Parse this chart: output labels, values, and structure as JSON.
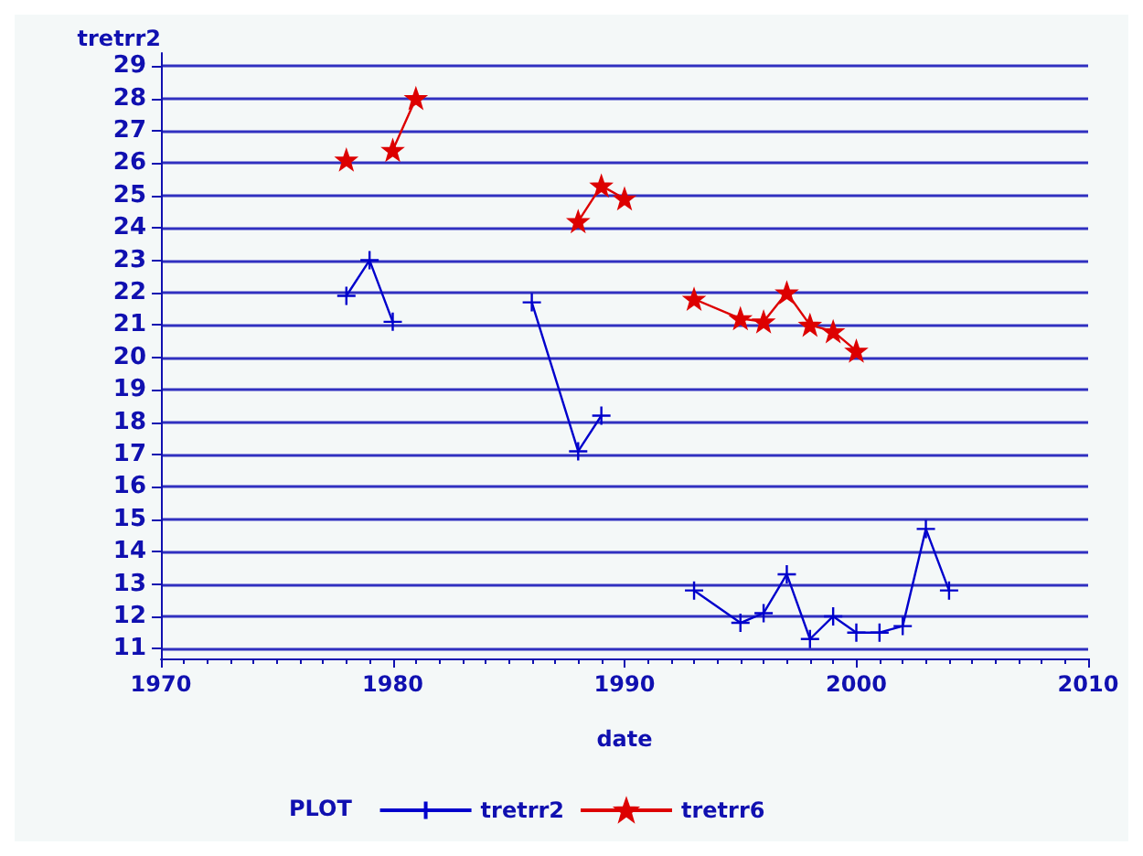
{
  "chart_data": {
    "type": "line",
    "ylabel": "tretrr2",
    "xlabel": "date",
    "legend_title": "PLOT",
    "legend": "bottom",
    "grid": "y",
    "xlim": [
      1970,
      2010
    ],
    "xticks": [
      1970,
      1980,
      1990,
      2000,
      2010
    ],
    "ylim": [
      10.7,
      29.4
    ],
    "yticks": [
      11,
      12,
      13,
      14,
      15,
      16,
      17,
      18,
      19,
      20,
      21,
      22,
      23,
      24,
      25,
      26,
      27,
      28,
      29
    ],
    "series": [
      {
        "name": "tretrr2",
        "color": "#0000cc",
        "marker": "cross",
        "x": [
          1978,
          1979,
          1980,
          1985,
          1986,
          1988,
          1989,
          1991,
          1993,
          1995,
          1996,
          1997,
          1998,
          1999,
          2000,
          2001,
          2002,
          2003,
          2004
        ],
        "values": [
          21.9,
          23,
          21.1,
          null,
          21.7,
          17.1,
          18.2,
          null,
          12.8,
          11.8,
          12.1,
          13.3,
          11.3,
          12.0,
          11.5,
          11.5,
          11.7,
          14.7,
          12.8
        ]
      },
      {
        "name": "tretrr6",
        "color": "#dd0000",
        "marker": "star",
        "x": [
          1978,
          1979,
          1980,
          1981,
          1985,
          1988,
          1989,
          1990,
          1991,
          1993,
          1995,
          1996,
          1997,
          1998,
          1999,
          2000
        ],
        "values": [
          26.1,
          null,
          26.4,
          28.0,
          null,
          24.2,
          25.3,
          24.9,
          null,
          21.8,
          21.2,
          21.1,
          22.0,
          21.0,
          20.8,
          20.2
        ]
      }
    ]
  }
}
